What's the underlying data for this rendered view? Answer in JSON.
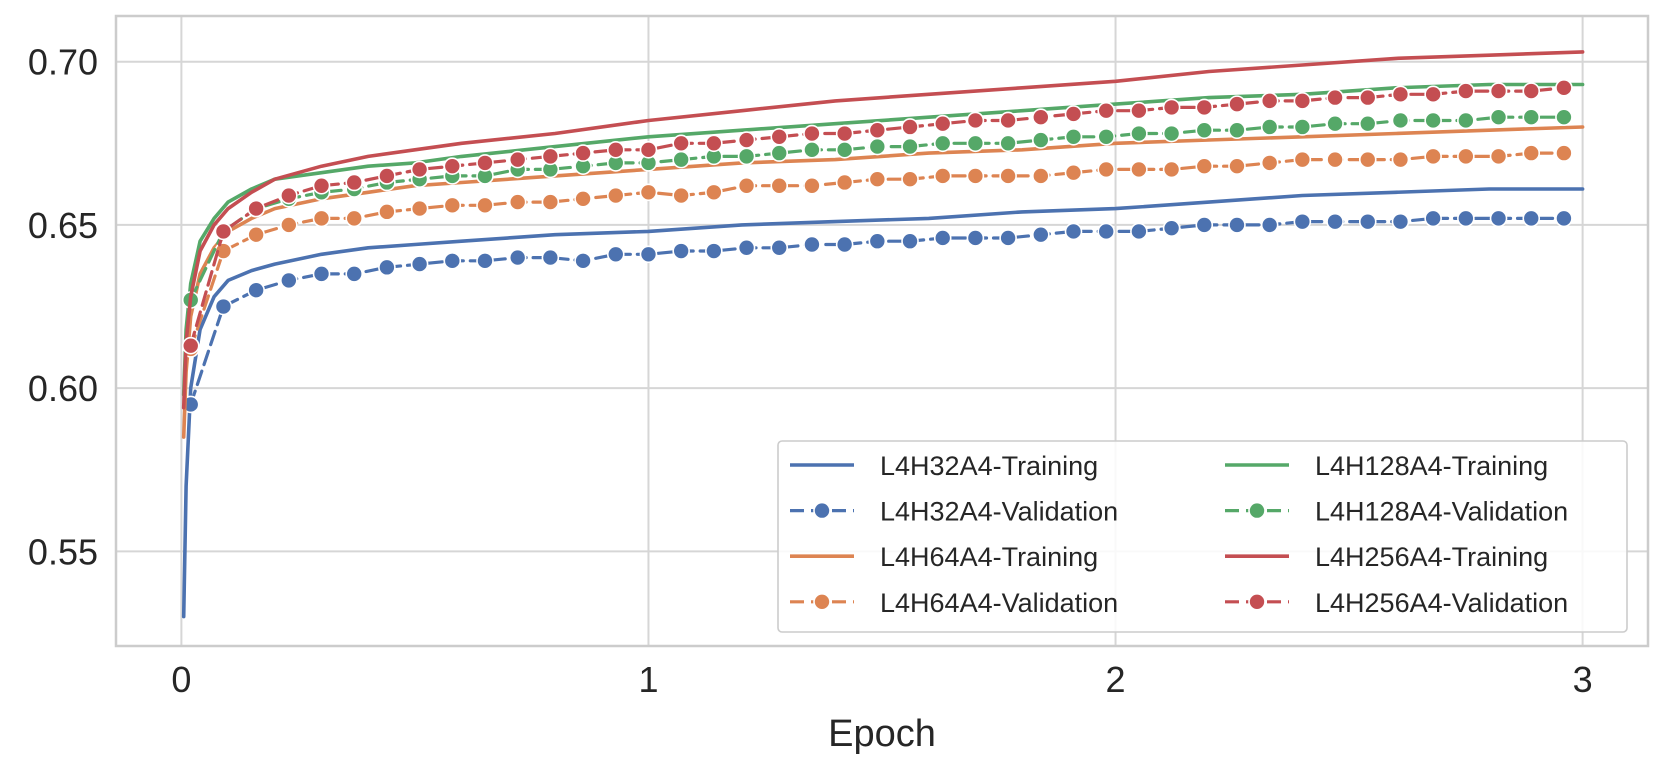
{
  "chart_data": {
    "type": "line",
    "title": "",
    "xlabel": "Epoch",
    "ylabel": "",
    "xlim": [
      -0.14,
      3.14
    ],
    "ylim": [
      0.521,
      0.714
    ],
    "xticks": [
      0,
      1,
      2,
      3
    ],
    "xtick_labels": [
      "0",
      "1",
      "2",
      "3"
    ],
    "yticks": [
      0.55,
      0.6,
      0.65,
      0.7
    ],
    "ytick_labels": [
      "0.55",
      "0.60",
      "0.65",
      "0.70"
    ],
    "grid": true,
    "legend": {
      "location": "lower-right",
      "columns": 2
    },
    "colors": {
      "blue": "#4c72b0",
      "orange": "#dd8452",
      "green": "#55a868",
      "red": "#c44e52"
    },
    "series": [
      {
        "name": "L4H32A4-Training",
        "style": "solid",
        "color": "#4c72b0",
        "x": [
          0.005,
          0.01,
          0.02,
          0.04,
          0.07,
          0.1,
          0.15,
          0.2,
          0.3,
          0.4,
          0.5,
          0.6,
          0.8,
          1.0,
          1.2,
          1.4,
          1.6,
          1.8,
          2.0,
          2.2,
          2.4,
          2.6,
          2.8,
          3.0
        ],
        "y": [
          0.53,
          0.57,
          0.6,
          0.618,
          0.628,
          0.633,
          0.636,
          0.638,
          0.641,
          0.643,
          0.644,
          0.645,
          0.647,
          0.648,
          0.65,
          0.651,
          0.652,
          0.654,
          0.655,
          0.657,
          0.659,
          0.66,
          0.661,
          0.661
        ]
      },
      {
        "name": "L4H32A4-Validation",
        "style": "dashed",
        "color": "#4c72b0",
        "x": [
          0.02,
          0.09,
          0.16,
          0.23,
          0.3,
          0.37,
          0.44,
          0.51,
          0.58,
          0.65,
          0.72,
          0.79,
          0.86,
          0.93,
          1.0,
          1.07,
          1.14,
          1.21,
          1.28,
          1.35,
          1.42,
          1.49,
          1.56,
          1.63,
          1.7,
          1.77,
          1.84,
          1.91,
          1.98,
          2.05,
          2.12,
          2.19,
          2.26,
          2.33,
          2.4,
          2.47,
          2.54,
          2.61,
          2.68,
          2.75,
          2.82,
          2.89,
          2.96
        ],
        "y": [
          0.595,
          0.625,
          0.63,
          0.633,
          0.635,
          0.635,
          0.637,
          0.638,
          0.639,
          0.639,
          0.64,
          0.64,
          0.639,
          0.641,
          0.641,
          0.642,
          0.642,
          0.643,
          0.643,
          0.644,
          0.644,
          0.645,
          0.645,
          0.646,
          0.646,
          0.646,
          0.647,
          0.648,
          0.648,
          0.648,
          0.649,
          0.65,
          0.65,
          0.65,
          0.651,
          0.651,
          0.651,
          0.651,
          0.652,
          0.652,
          0.652,
          0.652,
          0.652
        ]
      },
      {
        "name": "L4H64A4-Training",
        "style": "solid",
        "color": "#dd8452",
        "x": [
          0.005,
          0.01,
          0.02,
          0.04,
          0.07,
          0.1,
          0.15,
          0.2,
          0.3,
          0.4,
          0.5,
          0.6,
          0.8,
          1.0,
          1.2,
          1.4,
          1.6,
          1.8,
          2.0,
          2.2,
          2.4,
          2.6,
          2.8,
          3.0
        ],
        "y": [
          0.585,
          0.605,
          0.622,
          0.635,
          0.643,
          0.648,
          0.652,
          0.655,
          0.658,
          0.66,
          0.662,
          0.663,
          0.665,
          0.667,
          0.669,
          0.67,
          0.672,
          0.673,
          0.675,
          0.676,
          0.677,
          0.678,
          0.679,
          0.68
        ]
      },
      {
        "name": "L4H64A4-Validation",
        "style": "dashed",
        "color": "#dd8452",
        "x": [
          0.02,
          0.09,
          0.16,
          0.23,
          0.3,
          0.37,
          0.44,
          0.51,
          0.58,
          0.65,
          0.72,
          0.79,
          0.86,
          0.93,
          1.0,
          1.07,
          1.14,
          1.21,
          1.28,
          1.35,
          1.42,
          1.49,
          1.56,
          1.63,
          1.7,
          1.77,
          1.84,
          1.91,
          1.98,
          2.05,
          2.12,
          2.19,
          2.26,
          2.33,
          2.4,
          2.47,
          2.54,
          2.61,
          2.68,
          2.75,
          2.82,
          2.89,
          2.96
        ],
        "y": [
          0.612,
          0.642,
          0.647,
          0.65,
          0.652,
          0.652,
          0.654,
          0.655,
          0.656,
          0.656,
          0.657,
          0.657,
          0.658,
          0.659,
          0.66,
          0.659,
          0.66,
          0.662,
          0.662,
          0.662,
          0.663,
          0.664,
          0.664,
          0.665,
          0.665,
          0.665,
          0.665,
          0.666,
          0.667,
          0.667,
          0.667,
          0.668,
          0.668,
          0.669,
          0.67,
          0.67,
          0.67,
          0.67,
          0.671,
          0.671,
          0.671,
          0.672,
          0.672
        ]
      },
      {
        "name": "L4H128A4-Training",
        "style": "solid",
        "color": "#55a868",
        "x": [
          0.005,
          0.01,
          0.02,
          0.04,
          0.07,
          0.1,
          0.15,
          0.2,
          0.3,
          0.4,
          0.5,
          0.6,
          0.8,
          1.0,
          1.2,
          1.4,
          1.6,
          1.8,
          2.0,
          2.2,
          2.4,
          2.6,
          2.8,
          3.0
        ],
        "y": [
          0.598,
          0.618,
          0.632,
          0.645,
          0.652,
          0.657,
          0.661,
          0.664,
          0.666,
          0.668,
          0.669,
          0.671,
          0.674,
          0.677,
          0.679,
          0.681,
          0.683,
          0.685,
          0.687,
          0.689,
          0.69,
          0.692,
          0.693,
          0.693
        ]
      },
      {
        "name": "L4H128A4-Validation",
        "style": "dashed",
        "color": "#55a868",
        "x": [
          0.02,
          0.09,
          0.16,
          0.23,
          0.3,
          0.37,
          0.44,
          0.51,
          0.58,
          0.65,
          0.72,
          0.79,
          0.86,
          0.93,
          1.0,
          1.07,
          1.14,
          1.21,
          1.28,
          1.35,
          1.42,
          1.49,
          1.56,
          1.63,
          1.7,
          1.77,
          1.84,
          1.91,
          1.98,
          2.05,
          2.12,
          2.19,
          2.26,
          2.33,
          2.4,
          2.47,
          2.54,
          2.61,
          2.68,
          2.75,
          2.82,
          2.89,
          2.96
        ],
        "y": [
          0.627,
          0.648,
          0.655,
          0.658,
          0.66,
          0.661,
          0.663,
          0.664,
          0.665,
          0.665,
          0.667,
          0.667,
          0.668,
          0.669,
          0.669,
          0.67,
          0.671,
          0.671,
          0.672,
          0.673,
          0.673,
          0.674,
          0.674,
          0.675,
          0.675,
          0.675,
          0.676,
          0.677,
          0.677,
          0.678,
          0.678,
          0.679,
          0.679,
          0.68,
          0.68,
          0.681,
          0.681,
          0.682,
          0.682,
          0.682,
          0.683,
          0.683,
          0.683
        ]
      },
      {
        "name": "L4H256A4-Training",
        "style": "solid",
        "color": "#c44e52",
        "x": [
          0.005,
          0.01,
          0.02,
          0.04,
          0.07,
          0.1,
          0.15,
          0.2,
          0.3,
          0.4,
          0.5,
          0.6,
          0.8,
          1.0,
          1.2,
          1.4,
          1.6,
          1.8,
          2.0,
          2.2,
          2.4,
          2.6,
          2.8,
          3.0
        ],
        "y": [
          0.594,
          0.614,
          0.628,
          0.642,
          0.65,
          0.655,
          0.66,
          0.664,
          0.668,
          0.671,
          0.673,
          0.675,
          0.678,
          0.682,
          0.685,
          0.688,
          0.69,
          0.692,
          0.694,
          0.697,
          0.699,
          0.701,
          0.702,
          0.703
        ]
      },
      {
        "name": "L4H256A4-Validation",
        "style": "dashed",
        "color": "#c44e52",
        "x": [
          0.02,
          0.09,
          0.16,
          0.23,
          0.3,
          0.37,
          0.44,
          0.51,
          0.58,
          0.65,
          0.72,
          0.79,
          0.86,
          0.93,
          1.0,
          1.07,
          1.14,
          1.21,
          1.28,
          1.35,
          1.42,
          1.49,
          1.56,
          1.63,
          1.7,
          1.77,
          1.84,
          1.91,
          1.98,
          2.05,
          2.12,
          2.19,
          2.26,
          2.33,
          2.4,
          2.47,
          2.54,
          2.61,
          2.68,
          2.75,
          2.82,
          2.89,
          2.96
        ],
        "y": [
          0.613,
          0.648,
          0.655,
          0.659,
          0.662,
          0.663,
          0.665,
          0.667,
          0.668,
          0.669,
          0.67,
          0.671,
          0.672,
          0.673,
          0.673,
          0.675,
          0.675,
          0.676,
          0.677,
          0.678,
          0.678,
          0.679,
          0.68,
          0.681,
          0.682,
          0.682,
          0.683,
          0.684,
          0.685,
          0.685,
          0.686,
          0.686,
          0.687,
          0.688,
          0.688,
          0.689,
          0.689,
          0.69,
          0.69,
          0.691,
          0.691,
          0.691,
          0.692
        ]
      }
    ]
  }
}
